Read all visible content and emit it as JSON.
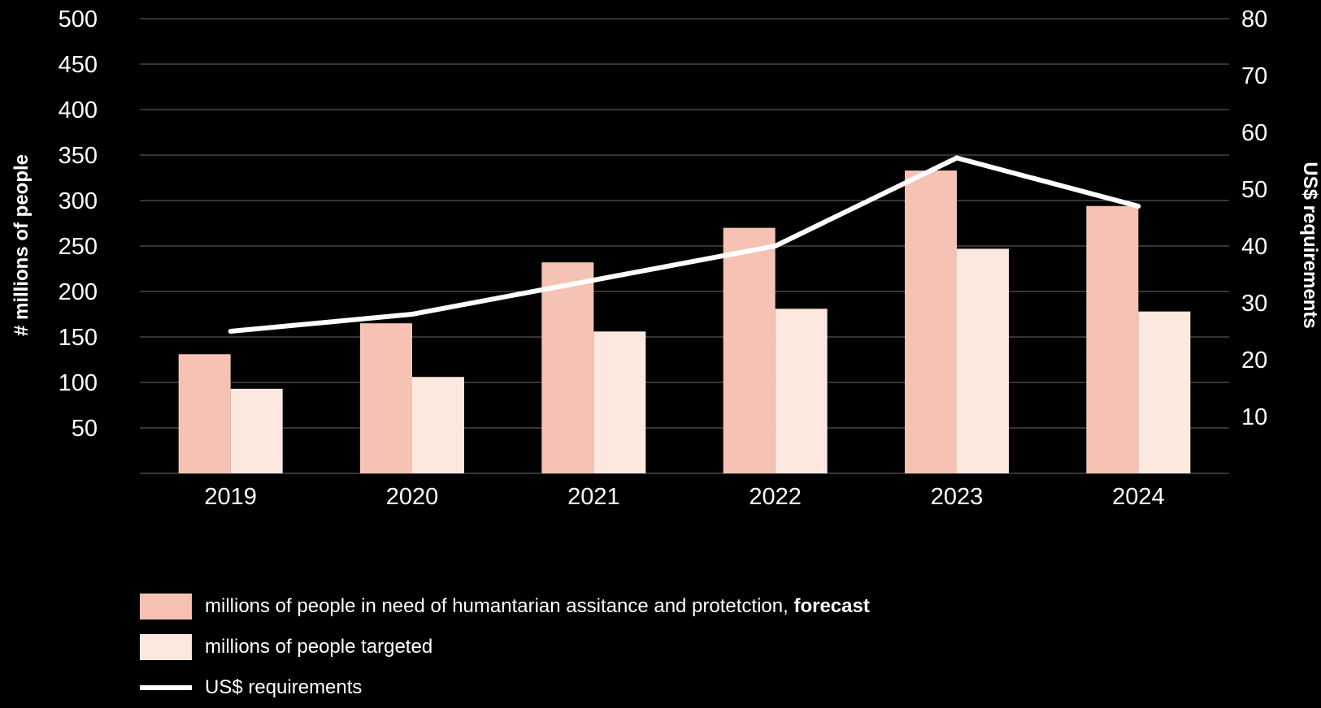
{
  "chart_data": {
    "type": "bar",
    "categories": [
      "2019",
      "2020",
      "2021",
      "2022",
      "2023",
      "2024"
    ],
    "series": [
      {
        "name": "millions of people in need of humantarian assitance and protetction, forecast",
        "type": "bar",
        "axis": "left",
        "color": "#f5c2b3",
        "values": [
          131,
          165,
          232,
          270,
          333,
          294
        ]
      },
      {
        "name": "millions of people targeted",
        "type": "bar",
        "axis": "left",
        "color": "#fde8df",
        "values": [
          93,
          106,
          156,
          181,
          247,
          178
        ]
      },
      {
        "name": "US$ requirements",
        "type": "line",
        "axis": "right",
        "color": "#ffffff",
        "values": [
          25.0,
          28.0,
          34.0,
          40.0,
          55.5,
          47.0
        ]
      }
    ],
    "ylabel": "# millions of people",
    "ylabel_right": "US$ requirements",
    "ylim": [
      0,
      500
    ],
    "ylim_right": [
      0,
      80
    ],
    "yticks": [
      50,
      100,
      150,
      200,
      250,
      300,
      350,
      400,
      450,
      500
    ],
    "yticks_right": [
      10,
      20,
      30,
      40,
      50,
      60,
      70,
      80
    ],
    "grid": true,
    "legend_position": "bottom"
  },
  "legend": {
    "item1_text": "millions of people in need of humantarian assitance and protetction, ",
    "item1_bold": "forecast",
    "item2_text": "millions of people targeted",
    "item3_text": "US$ requirements"
  }
}
